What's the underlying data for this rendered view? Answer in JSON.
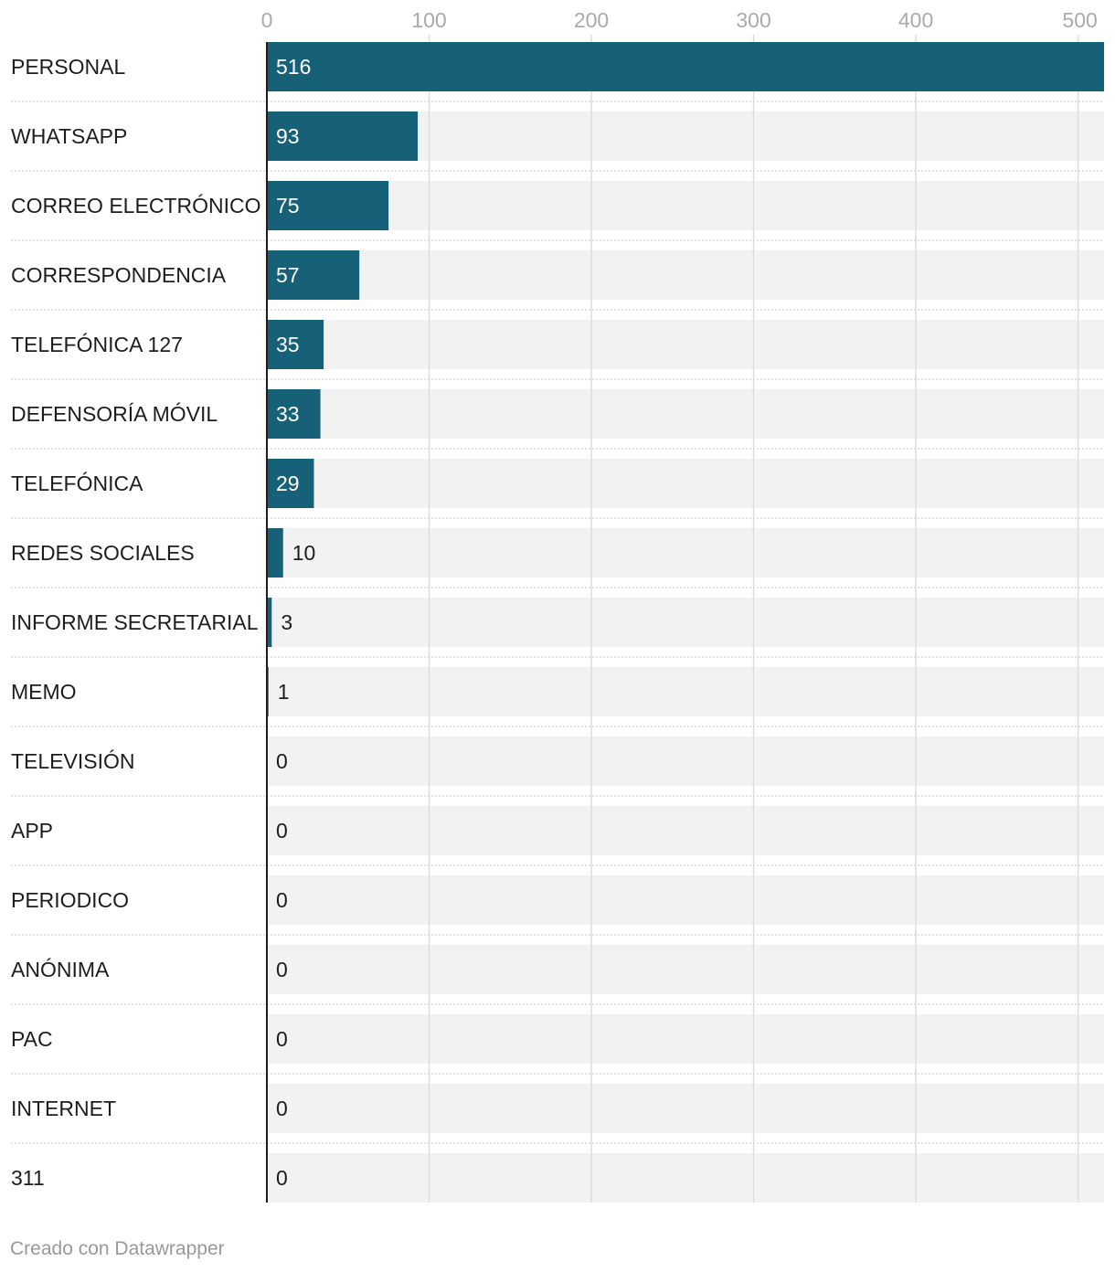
{
  "chart_data": {
    "type": "bar",
    "orientation": "horizontal",
    "categories": [
      "PERSONAL",
      "WHATSAPP",
      "CORREO ELECTRÓNICO",
      "CORRESPONDENCIA",
      "TELEFÓNICA 127",
      "DEFENSORÍA MÓVIL",
      "TELEFÓNICA",
      "REDES SOCIALES",
      "INFORME SECRETARIAL",
      "MEMO",
      "TELEVISIÓN",
      "APP",
      "PERIODICO",
      "ANÓNIMA",
      "PAC",
      "INTERNET",
      "311"
    ],
    "values": [
      516,
      93,
      75,
      57,
      35,
      33,
      29,
      10,
      3,
      1,
      0,
      0,
      0,
      0,
      0,
      0,
      0
    ],
    "value_labels": [
      "516",
      "93",
      "75",
      "57",
      "35",
      "33",
      "29",
      "10",
      "3",
      "1",
      "0",
      "0",
      "0",
      "0",
      "0",
      "0",
      "0"
    ],
    "x_ticks": [
      0,
      100,
      200,
      300,
      400,
      500
    ],
    "x_tick_labels": [
      "0",
      "100",
      "200",
      "300",
      "400",
      "500"
    ],
    "xlim": [
      0,
      516
    ],
    "grid": true,
    "colors": {
      "bar": "#176178",
      "track": "#f2f2f2",
      "grid": "#dddddd",
      "axis": "#1d1d1d",
      "label_inside": "#ffffff",
      "label_outside": "#1d1d1d"
    }
  },
  "footer": {
    "credit": "Creado con Datawrapper"
  }
}
